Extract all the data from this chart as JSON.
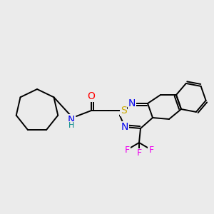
{
  "background_color": "#ebebeb",
  "bond_color": "#000000",
  "atom_colors": {
    "O": "#ff0000",
    "N": "#0000ee",
    "S": "#ccaa00",
    "F": "#ee00ee",
    "H": "#008888",
    "C": "#000000"
  },
  "figsize": [
    3.0,
    3.0
  ],
  "dpi": 100
}
